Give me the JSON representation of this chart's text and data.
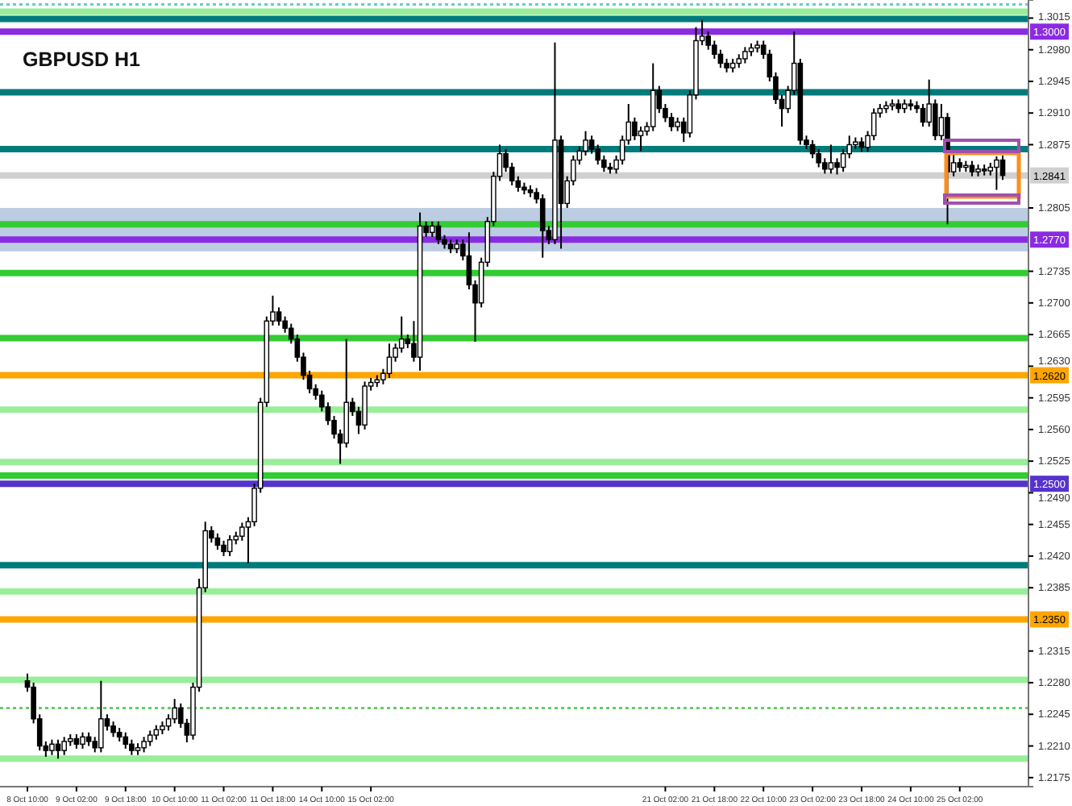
{
  "chart_data": {
    "type": "candlestick",
    "title": "GBPUSD H1",
    "color": "#000000",
    "categories": [
      "8 Oct 10:00",
      null,
      null,
      null,
      null,
      null,
      null,
      null,
      "9 Oct 02:00",
      null,
      null,
      null,
      null,
      null,
      null,
      null,
      "9 Oct 18:00",
      null,
      null,
      null,
      null,
      null,
      null,
      null,
      "10 Oct 10:00",
      null,
      null,
      null,
      null,
      null,
      null,
      null,
      "11 Oct 02:00",
      null,
      null,
      null,
      null,
      null,
      null,
      null,
      "11 Oct 18:00",
      null,
      null,
      null,
      null,
      null,
      null,
      null,
      "14 Oct 10:00",
      null,
      null,
      null,
      null,
      null,
      null,
      null,
      "15 Oct 02:00",
      null,
      null,
      null,
      null,
      null,
      null,
      null,
      null,
      null,
      null,
      null,
      null,
      null,
      null,
      null,
      null,
      null,
      null,
      null,
      null,
      null,
      null,
      null,
      null,
      null,
      null,
      null,
      null,
      null,
      null,
      null,
      null,
      null,
      null,
      null,
      null,
      null,
      null,
      null,
      null,
      null,
      null,
      null,
      null,
      null,
      null,
      null,
      "21 Oct 02:00",
      null,
      null,
      null,
      null,
      null,
      null,
      null,
      "21 Oct 18:00",
      null,
      null,
      null,
      null,
      null,
      null,
      null,
      "22 Oct 10:00",
      null,
      null,
      null,
      null,
      null,
      null,
      null,
      "23 Oct 02:00",
      null,
      null,
      null,
      null,
      null,
      null,
      null,
      "23 Oct 18:00",
      null,
      null,
      null,
      null,
      null,
      null,
      null,
      "24 Oct 10:00",
      null,
      null,
      null,
      null,
      null,
      null,
      null,
      "25 Oct 02:00",
      null,
      null,
      null,
      null,
      null,
      null,
      null
    ],
    "ohlc": [
      [
        1.2282,
        1.229,
        1.227,
        1.2275
      ],
      [
        1.2275,
        1.228,
        1.2235,
        1.224
      ],
      [
        1.224,
        1.2245,
        1.2205,
        1.221
      ],
      [
        1.221,
        1.2215,
        1.2198,
        1.2205
      ],
      [
        1.2205,
        1.2217,
        1.22,
        1.2212
      ],
      [
        1.2212,
        1.2217,
        1.2196,
        1.2205
      ],
      [
        1.2205,
        1.222,
        1.22,
        1.2215
      ],
      [
        1.2215,
        1.2223,
        1.221,
        1.2218
      ],
      [
        1.2218,
        1.2223,
        1.2207,
        1.2212
      ],
      [
        1.2212,
        1.2225,
        1.2207,
        1.222
      ],
      [
        1.222,
        1.2225,
        1.221,
        1.2215
      ],
      [
        1.2215,
        1.222,
        1.2203,
        1.2208
      ],
      [
        1.2208,
        1.2282,
        1.2203,
        1.224
      ],
      [
        1.224,
        1.2245,
        1.2227,
        1.2232
      ],
      [
        1.2232,
        1.2237,
        1.222,
        1.2225
      ],
      [
        1.2225,
        1.223,
        1.2215,
        1.222
      ],
      [
        1.222,
        1.2225,
        1.2207,
        1.2212
      ],
      [
        1.2212,
        1.2217,
        1.22,
        1.2205
      ],
      [
        1.2205,
        1.2213,
        1.22,
        1.2208
      ],
      [
        1.2208,
        1.222,
        1.2203,
        1.2215
      ],
      [
        1.2215,
        1.2227,
        1.221,
        1.2222
      ],
      [
        1.2222,
        1.2233,
        1.2217,
        1.2228
      ],
      [
        1.2228,
        1.2237,
        1.2223,
        1.2232
      ],
      [
        1.2232,
        1.2245,
        1.2227,
        1.224
      ],
      [
        1.224,
        1.2262,
        1.2235,
        1.2252
      ],
      [
        1.2252,
        1.2257,
        1.223,
        1.2235
      ],
      [
        1.2235,
        1.224,
        1.2214,
        1.2222
      ],
      [
        1.2222,
        1.228,
        1.2217,
        1.2275
      ],
      [
        1.2275,
        1.2395,
        1.227,
        1.2385
      ],
      [
        1.2385,
        1.2458,
        1.238,
        1.2448
      ],
      [
        1.2448,
        1.2453,
        1.2435,
        1.244
      ],
      [
        1.244,
        1.2445,
        1.2427,
        1.2432
      ],
      [
        1.2432,
        1.2437,
        1.242,
        1.2425
      ],
      [
        1.2425,
        1.2443,
        1.242,
        1.2438
      ],
      [
        1.2438,
        1.2447,
        1.2433,
        1.2442
      ],
      [
        1.2442,
        1.2457,
        1.2437,
        1.2452
      ],
      [
        1.2452,
        1.2463,
        1.2412,
        1.2458
      ],
      [
        1.2458,
        1.25,
        1.2453,
        1.2495
      ],
      [
        1.2495,
        1.2595,
        1.249,
        1.259
      ],
      [
        1.259,
        1.2685,
        1.2585,
        1.268
      ],
      [
        1.268,
        1.2708,
        1.2675,
        1.269
      ],
      [
        1.269,
        1.2695,
        1.2675,
        1.268
      ],
      [
        1.268,
        1.2685,
        1.2667,
        1.2672
      ],
      [
        1.2672,
        1.2677,
        1.2655,
        1.266
      ],
      [
        1.266,
        1.2665,
        1.2635,
        1.264
      ],
      [
        1.264,
        1.2645,
        1.2615,
        1.262
      ],
      [
        1.262,
        1.2625,
        1.26,
        1.2605
      ],
      [
        1.2605,
        1.261,
        1.2593,
        1.2598
      ],
      [
        1.2598,
        1.2603,
        1.258,
        1.2585
      ],
      [
        1.2585,
        1.259,
        1.2565,
        1.257
      ],
      [
        1.257,
        1.2575,
        1.255,
        1.2555
      ],
      [
        1.2555,
        1.256,
        1.2522,
        1.2545
      ],
      [
        1.2545,
        1.266,
        1.254,
        1.259
      ],
      [
        1.259,
        1.2595,
        1.2575,
        1.258
      ],
      [
        1.258,
        1.2585,
        1.2555,
        1.2565
      ],
      [
        1.2565,
        1.2613,
        1.256,
        1.2608
      ],
      [
        1.2608,
        1.2617,
        1.2603,
        1.2612
      ],
      [
        1.2612,
        1.262,
        1.2607,
        1.2615
      ],
      [
        1.2615,
        1.2627,
        1.261,
        1.2622
      ],
      [
        1.2622,
        1.2655,
        1.2617,
        1.264
      ],
      [
        1.264,
        1.2655,
        1.2635,
        1.265
      ],
      [
        1.265,
        1.2685,
        1.2645,
        1.266
      ],
      [
        1.266,
        1.2665,
        1.265,
        1.2655
      ],
      [
        1.2655,
        1.268,
        1.2635,
        1.264
      ],
      [
        1.264,
        1.28,
        1.2625,
        1.2785
      ],
      [
        1.2785,
        1.279,
        1.2773,
        1.2778
      ],
      [
        1.2778,
        1.279,
        1.2773,
        1.2785
      ],
      [
        1.2785,
        1.279,
        1.2765,
        1.277
      ],
      [
        1.277,
        1.2775,
        1.276,
        1.2765
      ],
      [
        1.2765,
        1.277,
        1.2755,
        1.276
      ],
      [
        1.276,
        1.277,
        1.2755,
        1.2765
      ],
      [
        1.2765,
        1.277,
        1.2747,
        1.2752
      ],
      [
        1.2752,
        1.2778,
        1.2715,
        1.272
      ],
      [
        1.272,
        1.2725,
        1.2657,
        1.27
      ],
      [
        1.27,
        1.275,
        1.2695,
        1.2745
      ],
      [
        1.2745,
        1.2795,
        1.274,
        1.279
      ],
      [
        1.279,
        1.2845,
        1.2785,
        1.284
      ],
      [
        1.284,
        1.2875,
        1.2835,
        1.2865
      ],
      [
        1.2865,
        1.287,
        1.2845,
        1.285
      ],
      [
        1.285,
        1.2855,
        1.283,
        1.2835
      ],
      [
        1.2835,
        1.284,
        1.2823,
        1.2828
      ],
      [
        1.2828,
        1.2833,
        1.282,
        1.2825
      ],
      [
        1.2825,
        1.283,
        1.2817,
        1.2822
      ],
      [
        1.2822,
        1.2827,
        1.281,
        1.2815
      ],
      [
        1.2815,
        1.282,
        1.275,
        1.278
      ],
      [
        1.278,
        1.2785,
        1.2765,
        1.277
      ],
      [
        1.277,
        1.2988,
        1.2765,
        1.288
      ],
      [
        1.288,
        1.2885,
        1.276,
        1.281
      ],
      [
        1.281,
        1.284,
        1.2805,
        1.2835
      ],
      [
        1.2835,
        1.2863,
        1.283,
        1.2858
      ],
      [
        1.2858,
        1.2873,
        1.2853,
        1.2868
      ],
      [
        1.2868,
        1.289,
        1.2863,
        1.288
      ],
      [
        1.288,
        1.2885,
        1.2865,
        1.287
      ],
      [
        1.287,
        1.2875,
        1.2853,
        1.2858
      ],
      [
        1.2858,
        1.2863,
        1.2845,
        1.285
      ],
      [
        1.285,
        1.2855,
        1.2843,
        1.2848
      ],
      [
        1.2848,
        1.2863,
        1.2843,
        1.2858
      ],
      [
        1.2858,
        1.2885,
        1.2853,
        1.288
      ],
      [
        1.288,
        1.292,
        1.2875,
        1.29
      ],
      [
        1.29,
        1.2905,
        1.288,
        1.2885
      ],
      [
        1.2885,
        1.2895,
        1.2868,
        1.289
      ],
      [
        1.289,
        1.29,
        1.2885,
        1.2895
      ],
      [
        1.2895,
        1.2965,
        1.289,
        1.2935
      ],
      [
        1.2935,
        1.294,
        1.291,
        1.2915
      ],
      [
        1.2915,
        1.292,
        1.29,
        1.2905
      ],
      [
        1.2905,
        1.291,
        1.289,
        1.2895
      ],
      [
        1.2895,
        1.2905,
        1.289,
        1.29
      ],
      [
        1.29,
        1.2905,
        1.2878,
        1.2888
      ],
      [
        1.2888,
        1.2935,
        1.2883,
        1.293
      ],
      [
        1.293,
        1.3005,
        1.2925,
        1.299
      ],
      [
        1.299,
        1.3013,
        1.2985,
        1.2995
      ],
      [
        1.2995,
        1.3,
        1.298,
        1.2985
      ],
      [
        1.2985,
        1.299,
        1.297,
        1.2975
      ],
      [
        1.2975,
        1.298,
        1.296,
        1.2965
      ],
      [
        1.2965,
        1.297,
        1.2955,
        1.296
      ],
      [
        1.296,
        1.297,
        1.2955,
        1.2965
      ],
      [
        1.2965,
        1.2975,
        1.296,
        1.297
      ],
      [
        1.297,
        1.2983,
        1.2965,
        1.2978
      ],
      [
        1.2978,
        1.2987,
        1.2973,
        1.2982
      ],
      [
        1.2982,
        1.299,
        1.2977,
        1.2985
      ],
      [
        1.2985,
        1.299,
        1.297,
        1.2975
      ],
      [
        1.2975,
        1.298,
        1.2945,
        1.295
      ],
      [
        1.295,
        1.2955,
        1.292,
        1.2925
      ],
      [
        1.2925,
        1.293,
        1.2895,
        1.2915
      ],
      [
        1.2915,
        1.294,
        1.291,
        1.2935
      ],
      [
        1.2935,
        1.3,
        1.293,
        1.2965
      ],
      [
        1.2965,
        1.297,
        1.2875,
        1.288
      ],
      [
        1.288,
        1.2885,
        1.287,
        1.2875
      ],
      [
        1.2875,
        1.288,
        1.286,
        1.2865
      ],
      [
        1.2865,
        1.287,
        1.285,
        1.2855
      ],
      [
        1.2855,
        1.286,
        1.2843,
        1.2848
      ],
      [
        1.2848,
        1.2875,
        1.2843,
        1.2855
      ],
      [
        1.2855,
        1.286,
        1.2842,
        1.285
      ],
      [
        1.285,
        1.287,
        1.2845,
        1.2865
      ],
      [
        1.2865,
        1.2885,
        1.286,
        1.2875
      ],
      [
        1.2875,
        1.2883,
        1.287,
        1.2878
      ],
      [
        1.2878,
        1.2883,
        1.2867,
        1.2872
      ],
      [
        1.2872,
        1.289,
        1.2867,
        1.2885
      ],
      [
        1.2885,
        1.2915,
        1.288,
        1.291
      ],
      [
        1.291,
        1.292,
        1.2905,
        1.2915
      ],
      [
        1.2915,
        1.2923,
        1.291,
        1.2918
      ],
      [
        1.2918,
        1.2925,
        1.2913,
        1.292
      ],
      [
        1.292,
        1.2925,
        1.291,
        1.2915
      ],
      [
        1.2915,
        1.2925,
        1.291,
        1.292
      ],
      [
        1.292,
        1.2925,
        1.2913,
        1.2918
      ],
      [
        1.2918,
        1.2923,
        1.291,
        1.2915
      ],
      [
        1.2915,
        1.292,
        1.2895,
        1.29
      ],
      [
        1.29,
        1.2947,
        1.2895,
        1.292
      ],
      [
        1.292,
        1.2925,
        1.288,
        1.2885
      ],
      [
        1.2885,
        1.292,
        1.288,
        1.2905
      ],
      [
        1.2905,
        1.291,
        1.2787,
        1.2845
      ],
      [
        1.2845,
        1.2868,
        1.284,
        1.2855
      ],
      [
        1.2855,
        1.286,
        1.2845,
        1.285
      ],
      [
        1.285,
        1.2857,
        1.2845,
        1.2852
      ],
      [
        1.2852,
        1.2857,
        1.284,
        1.2845
      ],
      [
        1.2845,
        1.2853,
        1.284,
        1.2848
      ],
      [
        1.2848,
        1.2853,
        1.2841,
        1.2846
      ],
      [
        1.2846,
        1.2855,
        1.2841,
        1.285
      ],
      [
        1.285,
        1.2862,
        1.2825,
        1.2858
      ],
      [
        1.2858,
        1.2863,
        1.2836,
        1.2841
      ]
    ],
    "ylim": [
      1.2165,
      1.3035
    ],
    "yticks": [
      1.3015,
      {
        "value": 1.298,
        "label": "1.2980"
      },
      1.2945,
      {
        "value": 1.291,
        "label": "1.2910"
      },
      1.2875,
      1.2805,
      1.2735,
      {
        "value": 1.27,
        "label": "1.2700"
      },
      1.2665,
      {
        "value": 1.263,
        "label": "1.2630"
      },
      1.2595,
      {
        "value": 1.256,
        "label": "1.2560"
      },
      1.2525,
      {
        "value": 1.249,
        "label": "1.2490"
      },
      1.2455,
      {
        "value": 1.242,
        "label": "1.2420"
      },
      1.2385,
      1.2315,
      {
        "value": 1.228,
        "label": "1.2280"
      },
      1.2245,
      {
        "value": 1.221,
        "label": "1.2210"
      },
      1.2175
    ],
    "bands": [
      {
        "axis": "y",
        "from": 1.2757,
        "to": 1.2805,
        "color": "#b0c4de"
      }
    ],
    "ref_lines": [
      {
        "axis": "y",
        "value": 1.303,
        "color": "#66cccc",
        "line_style": "dotted"
      },
      {
        "axis": "y",
        "value": 1.3022,
        "color": "#99ee99"
      },
      {
        "axis": "y",
        "value": 1.3014,
        "color": "#007b7b"
      },
      {
        "axis": "y",
        "value": 1.3,
        "color": "#8a2be2",
        "label": "1.3000"
      },
      {
        "axis": "y",
        "value": 1.2933,
        "color": "#007b7b"
      },
      {
        "axis": "y",
        "value": 1.287,
        "color": "#007b7b"
      },
      {
        "axis": "y",
        "value": 1.2841,
        "color": "#d0d0d0",
        "label": "1.2841"
      },
      {
        "axis": "y",
        "value": 1.2787,
        "color": "#33cc33"
      },
      {
        "axis": "y",
        "value": 1.277,
        "color": "#8a2be2",
        "label": "1.2770"
      },
      {
        "axis": "y",
        "value": 1.2733,
        "color": "#33cc33"
      },
      {
        "axis": "y",
        "value": 1.2661,
        "color": "#33cc33"
      },
      {
        "axis": "y",
        "value": 1.262,
        "color": "#ffa500",
        "label": "1.2620"
      },
      {
        "axis": "y",
        "value": 1.2582,
        "color": "#99ee99"
      },
      {
        "axis": "y",
        "value": 1.2524,
        "color": "#99ee99"
      },
      {
        "axis": "y",
        "value": 1.2509,
        "color": "#33cc33"
      },
      {
        "axis": "y",
        "value": 1.25,
        "color": "#5533cc",
        "label": "1.2500"
      },
      {
        "axis": "y",
        "value": 1.241,
        "color": "#007b7b"
      },
      {
        "axis": "y",
        "value": 1.2381,
        "color": "#99ee99"
      },
      {
        "axis": "y",
        "value": 1.235,
        "color": "#ffa500",
        "label": "1.2350"
      },
      {
        "axis": "y",
        "value": 1.2283,
        "color": "#99ee99"
      },
      {
        "axis": "y",
        "value": 1.2252,
        "color": "#66cc66",
        "line_style": "dotted"
      },
      {
        "axis": "y",
        "value": 1.2196,
        "color": "#99ee99"
      }
    ]
  }
}
